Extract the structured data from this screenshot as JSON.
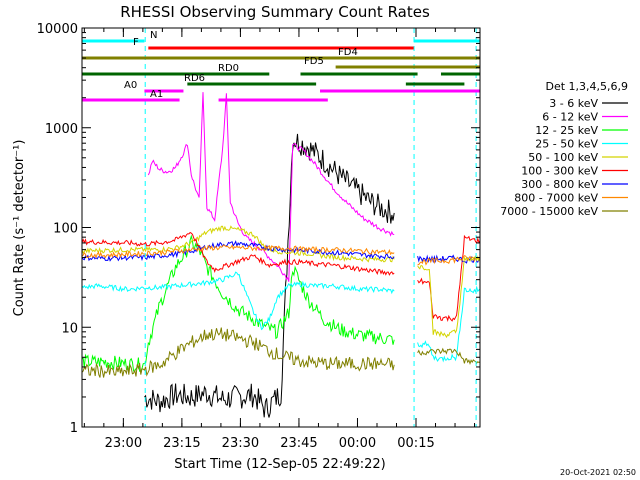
{
  "chart_data": {
    "type": "line",
    "title": "RHESSI Observing Summary Count Rates",
    "xlabel": "Start Time (12-Sep-05 22:49:22)",
    "ylabel": "Count Rate (s⁻¹ detector⁻¹)",
    "y_scale": "log",
    "ylim": [
      1,
      10000
    ],
    "y_ticks": [
      1,
      10,
      100,
      1000,
      10000
    ],
    "y_tick_labels": [
      "1",
      "10",
      "100",
      "1000",
      "10000"
    ],
    "xlim_minutes": [
      0,
      102
    ],
    "x_ticks_minutes": [
      10.6,
      25.6,
      40.6,
      55.6,
      70.6,
      85.6
    ],
    "x_tick_labels": [
      "23:00",
      "23:15",
      "23:30",
      "23:45",
      "00:00",
      "00:15"
    ],
    "legend_title": "Det 1,3,4,5,6,9",
    "legend_position": "right",
    "series": [
      {
        "name": "3 - 6 keV",
        "color": "#000000",
        "points": [
          [
            16,
            2
          ],
          [
            20,
            1.8
          ],
          [
            24,
            2.1
          ],
          [
            28,
            2
          ],
          [
            32,
            2.2
          ],
          [
            36,
            1.9
          ],
          [
            40,
            2
          ],
          [
            44,
            2.1
          ],
          [
            47,
            1.5
          ],
          [
            51,
            2.2
          ],
          [
            54,
            780
          ],
          [
            58,
            640
          ],
          [
            62,
            470
          ],
          [
            66,
            330
          ],
          [
            70,
            240
          ],
          [
            74,
            180
          ],
          [
            78,
            148
          ],
          [
            80,
            140
          ]
        ]
      },
      {
        "name": "6 - 12 keV",
        "color": "#ff00ff",
        "points": [
          [
            17,
            330
          ],
          [
            18,
            460
          ],
          [
            20,
            380
          ],
          [
            22,
            360
          ],
          [
            24,
            400
          ],
          [
            26,
            560
          ],
          [
            27,
            700
          ],
          [
            28,
            340
          ],
          [
            30,
            190
          ],
          [
            31,
            2200
          ],
          [
            32,
            160
          ],
          [
            34,
            120
          ],
          [
            36,
            600
          ],
          [
            37,
            2100
          ],
          [
            38,
            180
          ],
          [
            40,
            110
          ],
          [
            42,
            80
          ],
          [
            46,
            60
          ],
          [
            50,
            42
          ],
          [
            53,
            30
          ],
          [
            54,
            680
          ],
          [
            57,
            580
          ],
          [
            60,
            420
          ],
          [
            64,
            260
          ],
          [
            68,
            175
          ],
          [
            72,
            125
          ],
          [
            76,
            100
          ],
          [
            80,
            85
          ]
        ]
      },
      {
        "name": "12 - 25 keV",
        "color": "#00ff00",
        "points": [
          [
            0,
            4.5
          ],
          [
            6,
            4.5
          ],
          [
            12,
            4.3
          ],
          [
            16,
            4.2
          ],
          [
            17,
            7
          ],
          [
            20,
            17
          ],
          [
            24,
            40
          ],
          [
            28,
            70
          ],
          [
            30,
            60
          ],
          [
            32,
            40
          ],
          [
            36,
            22
          ],
          [
            40,
            15
          ],
          [
            44,
            12
          ],
          [
            47,
            10
          ],
          [
            50,
            9
          ],
          [
            53,
            14
          ],
          [
            54,
            40
          ],
          [
            58,
            19
          ],
          [
            62,
            12
          ],
          [
            66,
            9.5
          ],
          [
            70,
            8.5
          ],
          [
            74,
            8
          ],
          [
            80,
            7.5
          ]
        ]
      },
      {
        "name": "25 - 50 keV",
        "color": "#00ffff",
        "points": [
          [
            0,
            25
          ],
          [
            4,
            26
          ],
          [
            8,
            25
          ],
          [
            12,
            24
          ],
          [
            16,
            25
          ],
          [
            20,
            25
          ],
          [
            24,
            26
          ],
          [
            28,
            27
          ],
          [
            32,
            28
          ],
          [
            36,
            30
          ],
          [
            40,
            35
          ],
          [
            42,
            22
          ],
          [
            44,
            14
          ],
          [
            46,
            10
          ],
          [
            48,
            12
          ],
          [
            50,
            20
          ],
          [
            53,
            26
          ],
          [
            56,
            27
          ],
          [
            60,
            26
          ],
          [
            64,
            26
          ],
          [
            68,
            25
          ],
          [
            72,
            24
          ],
          [
            76,
            24
          ],
          [
            80,
            23
          ]
        ]
      },
      {
        "name": "50 - 100 keV",
        "color": "#d4d400",
        "points": [
          [
            0,
            58
          ],
          [
            6,
            59
          ],
          [
            12,
            60
          ],
          [
            16,
            60
          ],
          [
            20,
            60
          ],
          [
            24,
            62
          ],
          [
            28,
            70
          ],
          [
            32,
            90
          ],
          [
            36,
            100
          ],
          [
            40,
            95
          ],
          [
            44,
            85
          ],
          [
            47,
            62
          ],
          [
            50,
            58
          ],
          [
            54,
            56
          ],
          [
            58,
            55
          ],
          [
            62,
            52
          ],
          [
            66,
            50
          ],
          [
            70,
            49
          ],
          [
            74,
            48
          ],
          [
            80,
            48
          ]
        ]
      },
      {
        "name": "100 - 300 keV",
        "color": "#ff0000",
        "points": [
          [
            0,
            72
          ],
          [
            6,
            71
          ],
          [
            12,
            70
          ],
          [
            16,
            68
          ],
          [
            20,
            70
          ],
          [
            24,
            75
          ],
          [
            28,
            90
          ],
          [
            32,
            45
          ],
          [
            34,
            38
          ],
          [
            36,
            40
          ],
          [
            40,
            46
          ],
          [
            44,
            52
          ],
          [
            48,
            42
          ],
          [
            52,
            45
          ],
          [
            56,
            45
          ],
          [
            60,
            43
          ],
          [
            64,
            42
          ],
          [
            68,
            40
          ],
          [
            72,
            38
          ],
          [
            76,
            36
          ],
          [
            80,
            35
          ]
        ]
      },
      {
        "name": "300 - 800 keV",
        "color": "#0000ff",
        "points": [
          [
            0,
            50
          ],
          [
            6,
            49
          ],
          [
            12,
            50
          ],
          [
            16,
            50
          ],
          [
            20,
            52
          ],
          [
            24,
            54
          ],
          [
            28,
            58
          ],
          [
            32,
            64
          ],
          [
            36,
            68
          ],
          [
            40,
            69
          ],
          [
            44,
            66
          ],
          [
            48,
            62
          ],
          [
            52,
            60
          ],
          [
            56,
            59
          ],
          [
            60,
            58
          ],
          [
            64,
            56
          ],
          [
            68,
            55
          ],
          [
            72,
            53
          ],
          [
            76,
            52
          ],
          [
            80,
            51
          ]
        ]
      },
      {
        "name": "800 - 7000 keV",
        "color": "#ff8800",
        "points": [
          [
            0,
            53
          ],
          [
            6,
            53
          ],
          [
            12,
            54
          ],
          [
            16,
            55
          ],
          [
            20,
            56
          ],
          [
            24,
            58
          ],
          [
            28,
            60
          ],
          [
            32,
            62
          ],
          [
            36,
            63
          ],
          [
            40,
            63
          ],
          [
            44,
            62
          ],
          [
            48,
            62
          ],
          [
            52,
            62
          ],
          [
            56,
            61
          ],
          [
            60,
            60
          ],
          [
            64,
            60
          ],
          [
            68,
            59
          ],
          [
            72,
            58
          ],
          [
            76,
            57
          ],
          [
            80,
            56
          ]
        ]
      },
      {
        "name": "7000 - 15000 keV",
        "color": "#808000",
        "points": [
          [
            0,
            3.6
          ],
          [
            4,
            3.7
          ],
          [
            8,
            3.5
          ],
          [
            12,
            3.6
          ],
          [
            16,
            3.8
          ],
          [
            20,
            4.2
          ],
          [
            24,
            5.5
          ],
          [
            28,
            7
          ],
          [
            32,
            8.5
          ],
          [
            36,
            8.5
          ],
          [
            40,
            7.8
          ],
          [
            44,
            7
          ],
          [
            48,
            5.8
          ],
          [
            52,
            5
          ],
          [
            56,
            4.6
          ],
          [
            60,
            4.4
          ],
          [
            64,
            4.3
          ],
          [
            68,
            4.3
          ],
          [
            72,
            4.3
          ],
          [
            76,
            4.3
          ],
          [
            80,
            4.2
          ]
        ]
      }
    ],
    "post_gap_series": [
      {
        "color": "#ff0000",
        "points": [
          [
            86,
            28
          ],
          [
            87,
            29
          ],
          [
            88,
            28
          ],
          [
            89,
            28
          ],
          [
            90,
            13
          ],
          [
            92,
            12.5
          ],
          [
            94,
            12.3
          ],
          [
            96,
            12.5
          ],
          [
            98,
            78
          ],
          [
            100,
            75
          ],
          [
            102,
            74
          ]
        ]
      },
      {
        "color": "#0000ff",
        "points": [
          [
            86,
            49
          ],
          [
            90,
            48
          ],
          [
            94,
            49
          ],
          [
            96,
            49
          ],
          [
            98,
            47
          ],
          [
            100,
            48
          ],
          [
            102,
            48
          ]
        ]
      },
      {
        "color": "#ff8800",
        "points": [
          [
            86,
            45
          ],
          [
            90,
            46
          ],
          [
            94,
            47
          ],
          [
            96,
            48
          ],
          [
            98,
            49
          ],
          [
            100,
            49
          ],
          [
            102,
            50
          ]
        ]
      },
      {
        "color": "#d4d400",
        "points": [
          [
            86,
            41
          ],
          [
            88,
            40
          ],
          [
            89,
            40
          ],
          [
            90,
            9
          ],
          [
            92,
            8.5
          ],
          [
            94,
            8.5
          ],
          [
            96,
            9
          ],
          [
            98,
            47
          ],
          [
            100,
            48
          ],
          [
            102,
            48
          ]
        ]
      },
      {
        "color": "#00ffff",
        "points": [
          [
            86,
            6.8
          ],
          [
            88,
            6.7
          ],
          [
            89,
            6.5
          ],
          [
            90,
            5
          ],
          [
            92,
            4.8
          ],
          [
            94,
            5
          ],
          [
            96,
            5
          ],
          [
            98,
            24
          ],
          [
            100,
            23
          ],
          [
            102,
            24
          ]
        ]
      },
      {
        "color": "#808000",
        "points": [
          [
            86,
            5.6
          ],
          [
            90,
            5.7
          ],
          [
            94,
            5.8
          ],
          [
            96,
            5.8
          ],
          [
            98,
            4.6
          ],
          [
            100,
            4.5
          ],
          [
            102,
            4.5
          ]
        ]
      }
    ],
    "flags": [
      {
        "label": "N",
        "color": "#00ffff",
        "segments": [
          [
            0,
            16
          ],
          [
            85,
            102
          ]
        ]
      },
      {
        "label": "F",
        "color": "#ff0000",
        "segments": [
          [
            17,
            85
          ]
        ]
      },
      {
        "label": "FD4",
        "color": "#808000",
        "segments": [
          [
            0,
            102
          ]
        ]
      },
      {
        "label": "FD5",
        "color": "#808000",
        "segments": [
          [
            65,
            102
          ]
        ]
      },
      {
        "label": "RD0",
        "color": "#006400",
        "segments": [
          [
            0,
            48
          ],
          [
            56,
            86
          ],
          [
            92,
            102
          ]
        ]
      },
      {
        "label": "RD6",
        "color": "#006400",
        "segments": [
          [
            27,
            60
          ],
          [
            83,
            98
          ]
        ]
      },
      {
        "label": "A0",
        "color": "#ff00ff",
        "segments": [
          [
            16,
            26
          ],
          [
            61,
            102
          ]
        ]
      },
      {
        "label": "A1",
        "color": "#ff00ff",
        "segments": [
          [
            0,
            25
          ],
          [
            35,
            63
          ]
        ]
      }
    ],
    "attenuator_lines_minutes": [
      16.2,
      85.1,
      101.0
    ],
    "footer": "20-Oct-2021 02:50"
  }
}
